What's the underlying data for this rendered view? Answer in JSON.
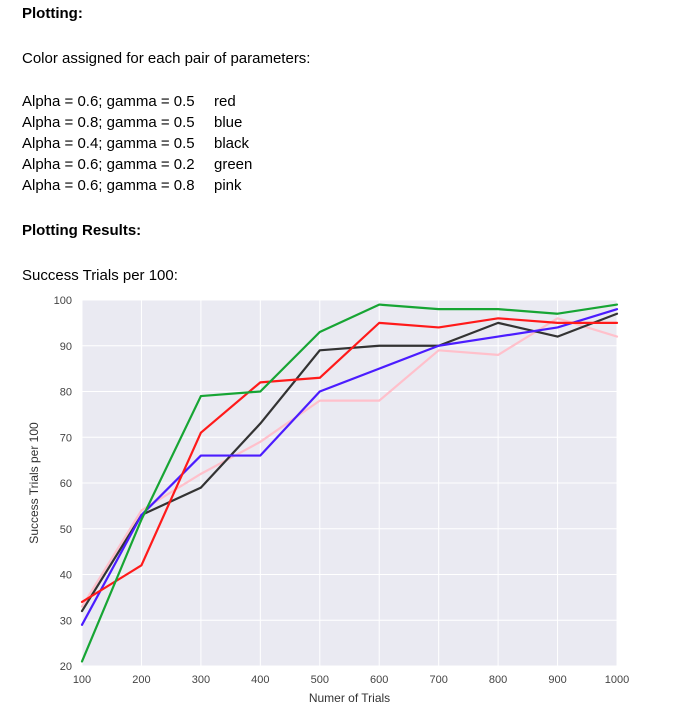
{
  "document": {
    "plotting_heading": "Plotting:",
    "color_intro": "Color assigned for each pair of parameters:",
    "parameter_colors": [
      {
        "label": "Alpha = 0.6; gamma = 0.5",
        "color_name": "red"
      },
      {
        "label": "Alpha = 0.8; gamma = 0.5",
        "color_name": "blue"
      },
      {
        "label": "Alpha = 0.4; gamma = 0.5",
        "color_name": "black"
      },
      {
        "label": "Alpha = 0.6; gamma = 0.2",
        "color_name": "green"
      },
      {
        "label": "Alpha = 0.6; gamma = 0.8",
        "color_name": "pink"
      }
    ],
    "results_heading": "Plotting Results:",
    "chart_caption": "Success Trials per 100:"
  },
  "chart_data": {
    "type": "line",
    "title": "",
    "xlabel": "Numer of Trials",
    "ylabel": "Success Trials per 100",
    "x": [
      100,
      200,
      300,
      400,
      500,
      600,
      700,
      800,
      900,
      1000
    ],
    "xlim": [
      100,
      1000
    ],
    "ylim": [
      20,
      100
    ],
    "xticks": [
      100,
      200,
      300,
      400,
      500,
      600,
      700,
      800,
      900,
      1000
    ],
    "yticks": [
      20,
      30,
      40,
      50,
      60,
      70,
      80,
      90,
      100
    ],
    "grid": true,
    "background": "#eaeaf2",
    "series": [
      {
        "color_name": "pink",
        "color": "#ffc0cb",
        "values": [
          33,
          54,
          62,
          69,
          78,
          78,
          89,
          88,
          96,
          92
        ]
      },
      {
        "color_name": "black",
        "color": "#333333",
        "values": [
          32,
          53,
          59,
          73,
          89,
          90,
          90,
          95,
          92,
          97
        ]
      },
      {
        "color_name": "blue",
        "color": "#4b1cff",
        "values": [
          29,
          53,
          66,
          66,
          80,
          85,
          90,
          92,
          94,
          98
        ]
      },
      {
        "color_name": "red",
        "color": "#ff1a1a",
        "values": [
          34,
          42,
          71,
          82,
          83,
          95,
          94,
          96,
          95,
          95
        ]
      },
      {
        "color_name": "green",
        "color": "#17a534",
        "values": [
          21,
          52,
          79,
          80,
          93,
          99,
          98,
          98,
          97,
          99
        ]
      }
    ]
  }
}
